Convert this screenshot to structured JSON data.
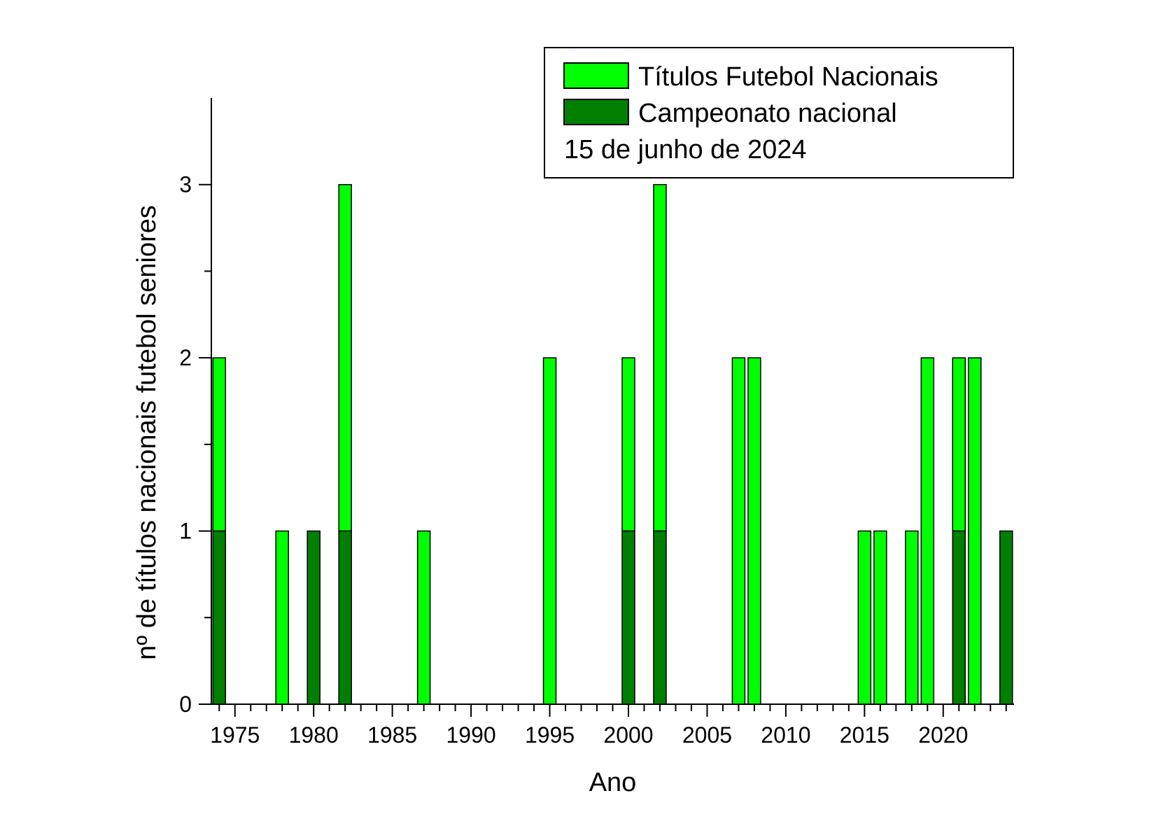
{
  "chart_data": {
    "type": "bar",
    "stacked": true,
    "xlabel": "Ano",
    "ylabel": "nº de títulos nacionais futebol seniores",
    "xlim": [
      1973.5,
      2024.5
    ],
    "ylim": [
      0,
      3.5
    ],
    "x_ticks": [
      1975,
      1980,
      1985,
      1990,
      1995,
      2000,
      2005,
      2010,
      2015,
      2020
    ],
    "y_ticks": [
      0,
      1,
      2,
      3
    ],
    "legend_position": "top-right",
    "annotation": "15 de junho de 2024",
    "colors": {
      "total": "#00ff00",
      "championship": "#007f00",
      "outline": "#000000"
    },
    "series": [
      {
        "name": "Títulos Futebol Nacionais",
        "role": "total",
        "x": [
          1974,
          1978,
          1980,
          1982,
          1987,
          1995,
          2000,
          2002,
          2007,
          2008,
          2015,
          2016,
          2018,
          2019,
          2021,
          2022,
          2024
        ],
        "values": [
          2,
          1,
          1,
          3,
          1,
          2,
          2,
          3,
          2,
          2,
          1,
          1,
          1,
          2,
          2,
          2,
          1
        ]
      },
      {
        "name": "Campeonato nacional",
        "role": "championship",
        "x": [
          1974,
          1980,
          1982,
          2000,
          2002,
          2021,
          2024
        ],
        "values": [
          1,
          1,
          1,
          1,
          1,
          1,
          1
        ]
      }
    ]
  }
}
